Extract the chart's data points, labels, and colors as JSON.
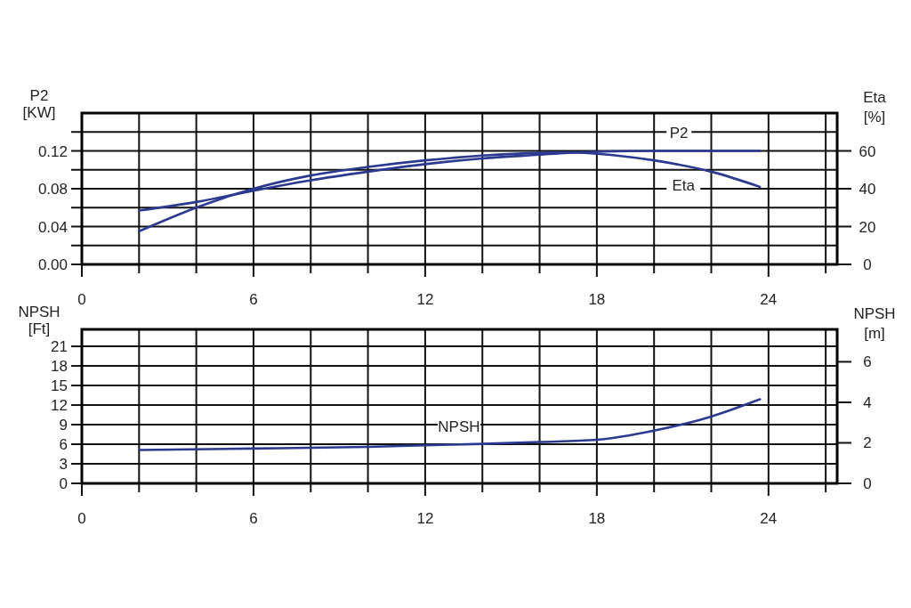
{
  "chart_data": [
    {
      "type": "line",
      "ylabel": "P2 [KW]",
      "y2label": "Eta [%]",
      "x": [
        2,
        4,
        6,
        8,
        10,
        12,
        14,
        16,
        17,
        18,
        20,
        22,
        23.7
      ],
      "series": [
        {
          "name": "P2",
          "color": "#2b3990",
          "values": [
            0.057,
            0.066,
            0.078,
            0.089,
            0.098,
            0.106,
            0.112,
            0.116,
            0.118,
            0.119,
            0.12,
            0.12,
            0.12
          ]
        },
        {
          "name": "Eta",
          "color": "#2b3990",
          "axis": "y2",
          "values": [
            17.5,
            30,
            40,
            47,
            51.5,
            55,
            57.5,
            59,
            59.2,
            58.5,
            55,
            49,
            41
          ]
        }
      ],
      "xlim": [
        0,
        26.4
      ],
      "xticks": [
        0,
        {
          "value": 2,
          "label": null
        },
        {
          "value": 4,
          "label": null
        },
        6,
        {
          "value": 8,
          "label": null
        },
        {
          "value": 10,
          "label": null
        },
        12,
        {
          "value": 14,
          "label": null
        },
        {
          "value": 16,
          "label": null
        },
        18,
        {
          "value": 20,
          "label": null
        },
        {
          "value": 22,
          "label": null
        },
        24,
        {
          "value": 26,
          "label": null
        }
      ],
      "ylim": [
        0,
        0.16
      ],
      "yticks": [
        {
          "value": 0,
          "label": "0.00"
        },
        {
          "value": 0.02,
          "label": null
        },
        {
          "value": 0.04,
          "label": "0.04"
        },
        {
          "value": 0.06,
          "label": null
        },
        {
          "value": 0.08,
          "label": "0.08"
        },
        {
          "value": 0.1,
          "label": null
        },
        {
          "value": 0.12,
          "label": "0.12"
        },
        {
          "value": 0.14,
          "label": null
        }
      ],
      "y2lim": [
        0,
        80
      ],
      "y2ticks": [
        0,
        20,
        40,
        60
      ],
      "grid": true,
      "line_style": "solid",
      "marker": "none"
    },
    {
      "type": "line",
      "ylabel": "NPSH [Ft]",
      "y2label": "NPSH [m]",
      "x": [
        2,
        6,
        10,
        12,
        14,
        16,
        18,
        20,
        22,
        23.7
      ],
      "series": [
        {
          "name": "NPSH",
          "color": "#2b3990",
          "axis": "y2",
          "values": [
            1.65,
            1.72,
            1.8,
            1.88,
            1.95,
            2.04,
            2.15,
            2.6,
            3.3,
            4.15
          ]
        }
      ],
      "xlim": [
        0,
        26.4
      ],
      "xticks": [
        0,
        {
          "value": 2,
          "label": null
        },
        {
          "value": 4,
          "label": null
        },
        6,
        {
          "value": 8,
          "label": null
        },
        {
          "value": 10,
          "label": null
        },
        12,
        {
          "value": 14,
          "label": null
        },
        {
          "value": 16,
          "label": null
        },
        18,
        {
          "value": 20,
          "label": null
        },
        {
          "value": 22,
          "label": null
        },
        24,
        {
          "value": 26,
          "label": null
        }
      ],
      "ylim": [
        0,
        23.6
      ],
      "yticks": [
        0,
        3,
        6,
        9,
        12,
        15,
        18,
        21
      ],
      "y2lim": [
        0,
        7.6
      ],
      "y2ticks": [
        0,
        2,
        4,
        6
      ],
      "grid": true,
      "line_style": "solid",
      "marker": "none"
    }
  ]
}
